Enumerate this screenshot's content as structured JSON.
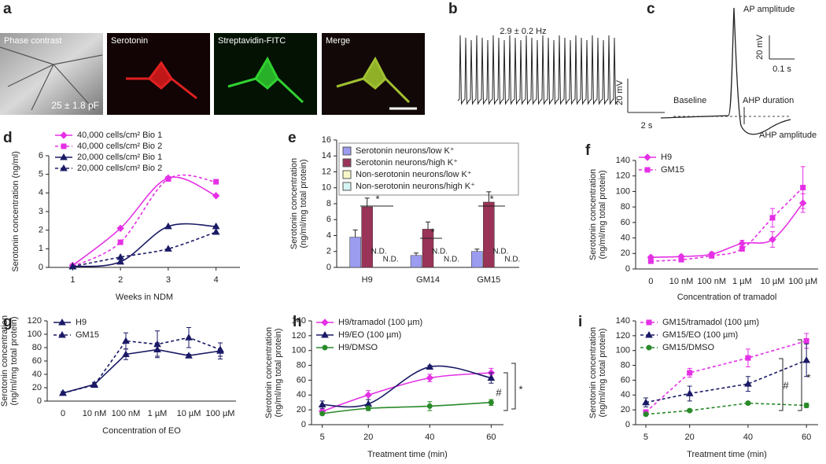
{
  "panel_labels": [
    "a",
    "b",
    "c",
    "d",
    "e",
    "f",
    "g",
    "h",
    "i"
  ],
  "images": {
    "titles": [
      "Phase contrast",
      "Serotonin",
      "Streptavidin-FITC",
      "Merge"
    ],
    "capacitance": "25 ± 1.8 pF"
  },
  "trace": {
    "frequency": "2.9 ± 0.2 Hz",
    "scale_y": "20 mV",
    "scale_x": "2 s"
  },
  "schematic": {
    "ap_amplitude": "AP amplitude",
    "scale_y": "20 mV",
    "scale_x": "0.1 s",
    "baseline": "Baseline",
    "ahp_duration": "AHP duration",
    "ahp_amplitude": "AHP amplitude"
  },
  "chart_data": [
    {
      "type": "line",
      "smooth": true,
      "ylabel": "Serotonin concentration (ng/ml)",
      "xlabel": "Weeks in NDM",
      "x": [
        1,
        2,
        3,
        4
      ],
      "xlim": [
        0.5,
        4.5
      ],
      "xticks": [
        1,
        2,
        3,
        4
      ],
      "ylim": [
        0,
        6
      ],
      "yticks": [
        0,
        1,
        2,
        3,
        4,
        5,
        6
      ],
      "series": [
        {
          "name": "40,000 cells/cm² Bio 1",
          "color": "#e531e5",
          "dash": "solid",
          "marker": "diamond",
          "values": [
            0.1,
            2.1,
            4.8,
            3.85
          ]
        },
        {
          "name": "40,000 cells/cm² Bio 2",
          "color": "#e531e5",
          "dash": "dashed",
          "marker": "square",
          "values": [
            0.05,
            1.35,
            4.75,
            4.6
          ]
        },
        {
          "name": "20,000 cells/cm² Bio 1",
          "color": "#1a1a66",
          "dash": "solid",
          "marker": "triangle",
          "values": [
            0.05,
            0.3,
            2.2,
            2.2
          ]
        },
        {
          "name": "20,000 cells/cm² Bio 2",
          "color": "#1a1a66",
          "dash": "dashed",
          "marker": "triangle",
          "values": [
            0.05,
            0.55,
            1.0,
            1.9
          ]
        }
      ]
    },
    {
      "type": "bar",
      "ylabel": [
        "Serotonin concentration",
        "(ng/ml/mg total protein)"
      ],
      "categories": [
        "H9",
        "GM14",
        "GM15"
      ],
      "ylim": [
        0,
        16
      ],
      "yticks": [
        0,
        2,
        4,
        6,
        8,
        10,
        12,
        14,
        16
      ],
      "series": [
        {
          "name": "Serotonin neurons/low K⁺",
          "color": "#9b9bef",
          "values": [
            3.8,
            1.5,
            2.0
          ],
          "errors": [
            0.9,
            0.3,
            0.3
          ]
        },
        {
          "name": "Serotonin neurons/high K⁺",
          "color": "#9a3358",
          "values": [
            7.6,
            4.8,
            8.2
          ],
          "errors": [
            1.1,
            0.9,
            1.3
          ]
        },
        {
          "name": "Non-serotonin neurons/low K⁺",
          "color": "#f7f7c8",
          "values": [
            null,
            null,
            null
          ],
          "value_labels": [
            "N.D.",
            "N.D.",
            "N.D."
          ]
        },
        {
          "name": "Non-serotonin neurons/high K⁺",
          "color": "#d8f4f4",
          "values": [
            null,
            null,
            null
          ],
          "value_labels": [
            "N.D.",
            "N.D.",
            "N.D."
          ]
        }
      ],
      "annotations": [
        "*",
        "*",
        "*"
      ]
    },
    {
      "type": "line",
      "smooth": true,
      "ylabel": [
        "Serotonin concentration",
        "(ng/ml/mg total protein)"
      ],
      "xlabel": "Concentration of tramadol",
      "categories": [
        "0",
        "10 nM",
        "100 nM",
        "1 µM",
        "10 µM",
        "100 µM"
      ],
      "ylim": [
        0,
        140
      ],
      "yticks": [
        0,
        20,
        40,
        60,
        80,
        100,
        120,
        140
      ],
      "series": [
        {
          "name": "H9",
          "color": "#e531e5",
          "dash": "solid",
          "marker": "diamond",
          "values": [
            15,
            16,
            19,
            33,
            38,
            85
          ],
          "errors": [
            2,
            2,
            3,
            4,
            10,
            12
          ]
        },
        {
          "name": "GM15",
          "color": "#e531e5",
          "dash": "dashed",
          "marker": "square",
          "values": [
            10,
            12,
            17,
            26,
            66,
            105
          ],
          "errors": [
            2,
            2,
            3,
            3,
            12,
            27
          ]
        }
      ]
    },
    {
      "type": "line",
      "smooth": false,
      "ylabel": [
        "Serotonin concentration",
        "(ng/ml/mg total protein)"
      ],
      "xlabel": "Concentration of EO",
      "categories": [
        "0",
        "10 nM",
        "100 nM",
        "1 µM",
        "10 µM",
        "100 µM"
      ],
      "ylim": [
        0,
        120
      ],
      "yticks": [
        0,
        20,
        40,
        60,
        80,
        100,
        120
      ],
      "series": [
        {
          "name": "H9",
          "color": "#1a1a66",
          "dash": "solid",
          "marker": "triangle",
          "values": [
            12,
            25,
            70,
            77,
            68,
            75
          ],
          "errors": [
            2,
            3,
            8,
            10,
            2,
            12
          ]
        },
        {
          "name": "GM15",
          "color": "#1a1a66",
          "dash": "dashed",
          "marker": "triangle",
          "values": [
            12,
            24,
            90,
            85,
            95,
            77
          ],
          "errors": [
            2,
            3,
            12,
            20,
            15,
            10
          ]
        }
      ]
    },
    {
      "type": "line",
      "smooth": true,
      "ylabel": [
        "Serotonin concentration",
        "(ng/ml/mg total protein)"
      ],
      "xlabel": "Treatment time (min)",
      "x": [
        5,
        20,
        40,
        60
      ],
      "xlim": [
        1.5,
        64
      ],
      "xticks": [
        5,
        20,
        40,
        60
      ],
      "ylim": [
        0,
        140
      ],
      "yticks": [
        0,
        20,
        40,
        60,
        80,
        100,
        120,
        140
      ],
      "series": [
        {
          "name": "H9/tramadol (100 µm)",
          "color": "#e531e5",
          "dash": "solid",
          "marker": "diamond",
          "values": [
            18,
            40,
            63,
            70
          ],
          "errors": [
            3,
            6,
            5,
            6
          ]
        },
        {
          "name": "H9/EO (100 µm)",
          "color": "#1a1a66",
          "dash": "solid",
          "marker": "triangle",
          "values": [
            27,
            28,
            78,
            63
          ],
          "errors": [
            5,
            6,
            2,
            7
          ]
        },
        {
          "name": "H9/DMSO",
          "color": "#2a8a2a",
          "dash": "solid",
          "marker": "circle",
          "values": [
            15,
            22,
            25,
            30
          ],
          "errors": [
            2,
            3,
            6,
            4
          ]
        }
      ],
      "annotations": [
        "#",
        "*"
      ]
    },
    {
      "type": "line",
      "smooth": false,
      "ylabel": [
        "Serotonin concentration",
        "(ng/ml/mg total protein)"
      ],
      "xlabel": "Treatment time (min)",
      "x": [
        5,
        20,
        40,
        60
      ],
      "xlim": [
        1.5,
        64
      ],
      "xticks": [
        5,
        20,
        40,
        60
      ],
      "ylim": [
        0,
        140
      ],
      "yticks": [
        0,
        20,
        40,
        60,
        80,
        100,
        120,
        140
      ],
      "series": [
        {
          "name": "GM15/tramadol (100 µm)",
          "color": "#e531e5",
          "dash": "dashed",
          "marker": "square",
          "values": [
            17,
            70,
            90,
            113
          ],
          "errors": [
            3,
            6,
            12,
            10
          ]
        },
        {
          "name": "GM15/EO (100 µm)",
          "color": "#1a1a66",
          "dash": "dashed",
          "marker": "triangle",
          "values": [
            30,
            42,
            55,
            87
          ],
          "errors": [
            6,
            10,
            10,
            22
          ]
        },
        {
          "name": "GM15/DMSO",
          "color": "#2a8a2a",
          "dash": "dashed",
          "marker": "circle",
          "values": [
            14,
            19,
            29,
            26
          ],
          "errors": [
            2,
            2,
            2,
            3
          ]
        }
      ],
      "annotations": [
        "#",
        "*"
      ]
    }
  ]
}
